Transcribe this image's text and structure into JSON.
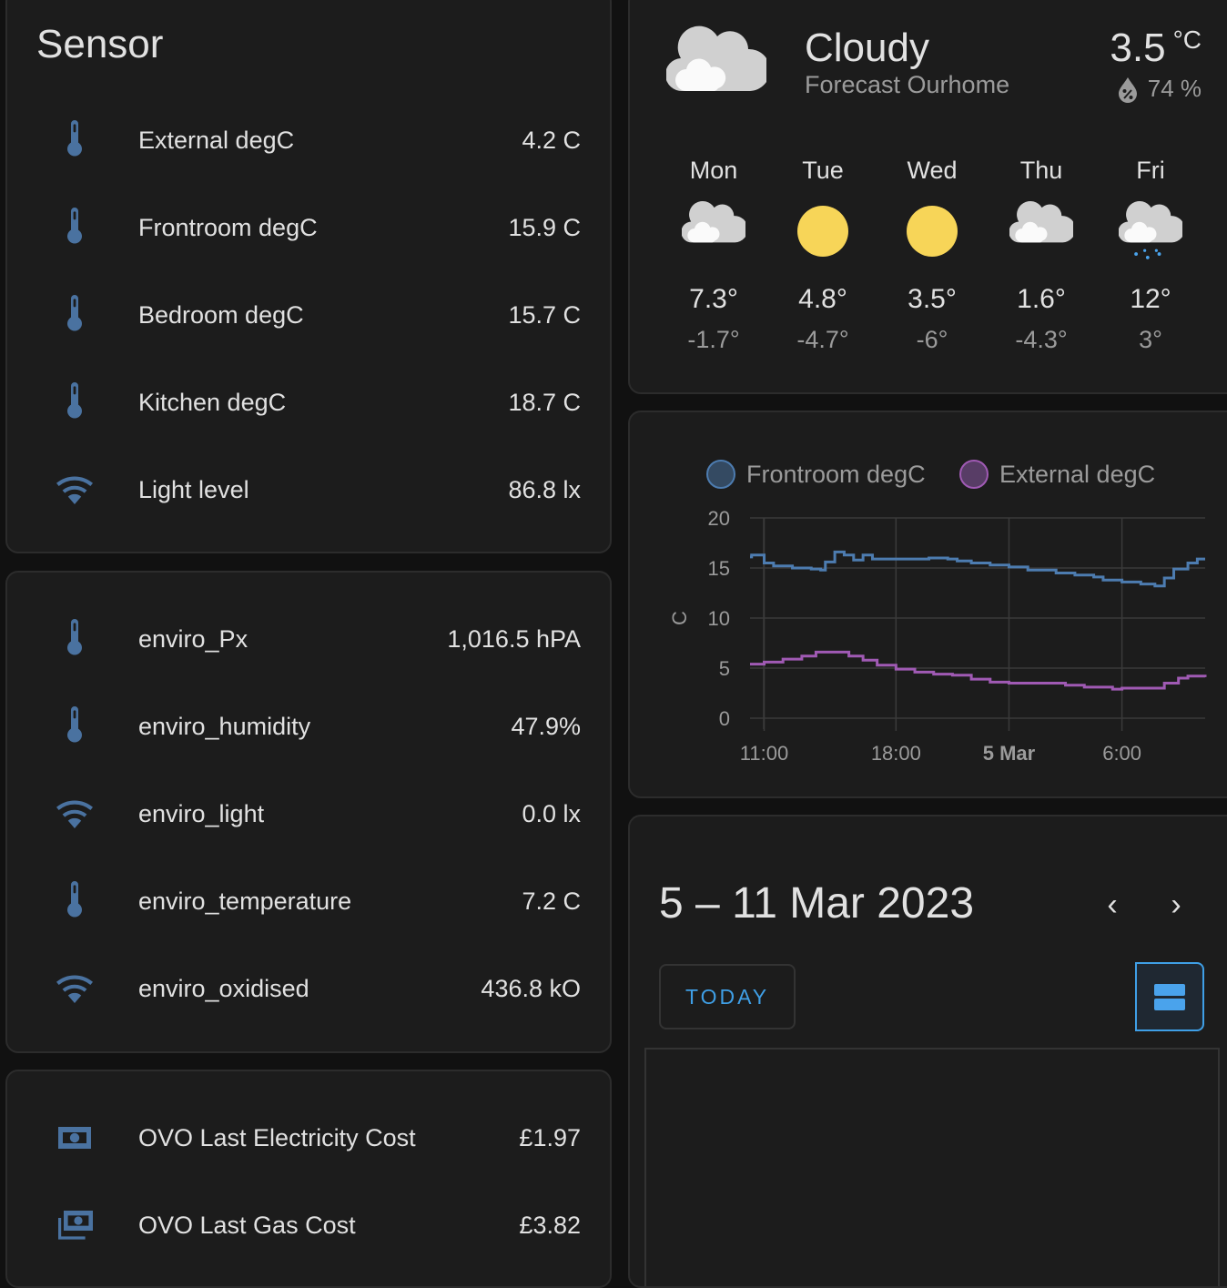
{
  "sensor_card": {
    "title": "Sensor",
    "items": [
      {
        "name": "External degC",
        "value": "4.2 C",
        "icon": "thermometer"
      },
      {
        "name": "Frontroom degC",
        "value": "15.9 C",
        "icon": "thermometer"
      },
      {
        "name": "Bedroom degC",
        "value": "15.7 C",
        "icon": "thermometer"
      },
      {
        "name": "Kitchen degC",
        "value": "18.7 C",
        "icon": "thermometer"
      },
      {
        "name": "Light level",
        "value": "86.8 lx",
        "icon": "wifi"
      }
    ]
  },
  "enviro_card": {
    "items": [
      {
        "name": "enviro_Px",
        "value": "1,016.5 hPA",
        "icon": "thermometer"
      },
      {
        "name": "enviro_humidity",
        "value": "47.9%",
        "icon": "thermometer"
      },
      {
        "name": "enviro_light",
        "value": "0.0 lx",
        "icon": "wifi"
      },
      {
        "name": "enviro_temperature",
        "value": "7.2 C",
        "icon": "thermometer"
      },
      {
        "name": "enviro_oxidised",
        "value": "436.8 kO",
        "icon": "wifi"
      }
    ]
  },
  "cost_card": {
    "items": [
      {
        "name": "OVO Last Electricity Cost",
        "value": "£1.97",
        "icon": "cash"
      },
      {
        "name": "OVO Last Gas Cost",
        "value": "£3.82",
        "icon": "cash-multiple"
      }
    ]
  },
  "weather": {
    "condition": "Cloudy",
    "name": "Forecast Ourhome",
    "temperature": "3.5",
    "unit": "°C",
    "humidity": "74 %",
    "icon": "cloudy",
    "forecast": [
      {
        "day": "Mon",
        "icon": "cloudy",
        "high": "7.3°",
        "low": "-1.7°"
      },
      {
        "day": "Tue",
        "icon": "sunny",
        "high": "4.8°",
        "low": "-4.7°"
      },
      {
        "day": "Wed",
        "icon": "sunny",
        "high": "3.5°",
        "low": "-6°"
      },
      {
        "day": "Thu",
        "icon": "cloudy",
        "high": "1.6°",
        "low": "-4.3°"
      },
      {
        "day": "Fri",
        "icon": "rainy",
        "high": "12°",
        "low": "3°"
      }
    ]
  },
  "chart_data": {
    "type": "line",
    "ylabel": "C",
    "ylim": [
      0,
      20
    ],
    "yticks": [
      "0",
      "5",
      "10",
      "15",
      "20"
    ],
    "xticks": [
      {
        "label": "11:00",
        "t": "2023-03-04T11:00"
      },
      {
        "label": "18:00",
        "t": "2023-03-04T18:00"
      },
      {
        "label": "5 Mar",
        "t": "2023-03-05T00:00",
        "bold": true
      },
      {
        "label": "6:00",
        "t": "2023-03-05T06:00"
      }
    ],
    "xlim": [
      "2023-03-04T10:15",
      "2023-03-05T10:25"
    ],
    "grid": true,
    "legend": "top",
    "series": [
      {
        "name": "Frontroom degC",
        "color": "#4d7cb0",
        "points": [
          [
            "2023-03-04T10:15",
            16.1
          ],
          [
            "2023-03-04T10:20",
            16.3
          ],
          [
            "2023-03-04T11:00",
            15.5
          ],
          [
            "2023-03-04T11:30",
            15.2
          ],
          [
            "2023-03-04T12:30",
            15.0
          ],
          [
            "2023-03-04T13:30",
            14.9
          ],
          [
            "2023-03-04T14:00",
            14.8
          ],
          [
            "2023-03-04T14:15",
            15.6
          ],
          [
            "2023-03-04T14:45",
            16.6
          ],
          [
            "2023-03-04T15:15",
            16.3
          ],
          [
            "2023-03-04T15:45",
            15.8
          ],
          [
            "2023-03-04T16:15",
            16.3
          ],
          [
            "2023-03-04T16:45",
            15.9
          ],
          [
            "2023-03-04T19:00",
            15.9
          ],
          [
            "2023-03-04T19:45",
            16.0
          ],
          [
            "2023-03-04T20:45",
            15.9
          ],
          [
            "2023-03-04T21:15",
            15.7
          ],
          [
            "2023-03-04T22:00",
            15.5
          ],
          [
            "2023-03-04T23:00",
            15.3
          ],
          [
            "2023-03-05T00:00",
            15.1
          ],
          [
            "2023-03-05T01:00",
            14.8
          ],
          [
            "2023-03-05T02:30",
            14.5
          ],
          [
            "2023-03-05T03:30",
            14.3
          ],
          [
            "2023-03-05T04:30",
            14.1
          ],
          [
            "2023-03-05T05:00",
            13.8
          ],
          [
            "2023-03-05T06:00",
            13.6
          ],
          [
            "2023-03-05T07:00",
            13.4
          ],
          [
            "2023-03-05T07:45",
            13.2
          ],
          [
            "2023-03-05T08:15",
            14.0
          ],
          [
            "2023-03-05T08:45",
            14.9
          ],
          [
            "2023-03-05T09:30",
            15.5
          ],
          [
            "2023-03-05T10:00",
            15.9
          ],
          [
            "2023-03-05T10:25",
            15.9
          ]
        ]
      },
      {
        "name": "External degC",
        "color": "#a05ab4",
        "points": [
          [
            "2023-03-04T10:15",
            5.4
          ],
          [
            "2023-03-04T11:00",
            5.6
          ],
          [
            "2023-03-04T12:00",
            5.9
          ],
          [
            "2023-03-04T13:00",
            6.2
          ],
          [
            "2023-03-04T13:45",
            6.6
          ],
          [
            "2023-03-04T14:45",
            6.6
          ],
          [
            "2023-03-04T15:30",
            6.2
          ],
          [
            "2023-03-04T16:15",
            5.8
          ],
          [
            "2023-03-04T17:00",
            5.3
          ],
          [
            "2023-03-04T18:00",
            4.9
          ],
          [
            "2023-03-04T19:00",
            4.6
          ],
          [
            "2023-03-04T20:00",
            4.4
          ],
          [
            "2023-03-04T21:00",
            4.3
          ],
          [
            "2023-03-04T22:00",
            3.9
          ],
          [
            "2023-03-04T23:00",
            3.6
          ],
          [
            "2023-03-05T00:00",
            3.5
          ],
          [
            "2023-03-05T02:00",
            3.5
          ],
          [
            "2023-03-05T03:00",
            3.3
          ],
          [
            "2023-03-05T04:00",
            3.1
          ],
          [
            "2023-03-05T05:30",
            2.9
          ],
          [
            "2023-03-05T06:00",
            3.0
          ],
          [
            "2023-03-05T07:30",
            3.0
          ],
          [
            "2023-03-05T08:15",
            3.5
          ],
          [
            "2023-03-05T09:00",
            4.0
          ],
          [
            "2023-03-05T09:30",
            4.2
          ],
          [
            "2023-03-05T10:25",
            4.1
          ]
        ]
      }
    ]
  },
  "calendar": {
    "range": "5 – 11 Mar 2023",
    "prev": "‹",
    "next": "›",
    "today_label": "TODAY",
    "view_icon": "view-agenda"
  },
  "colors": {
    "icon": "#4a72a0",
    "accent": "#3f9fe6",
    "card": "#1c1c1c",
    "background": "#111111"
  }
}
